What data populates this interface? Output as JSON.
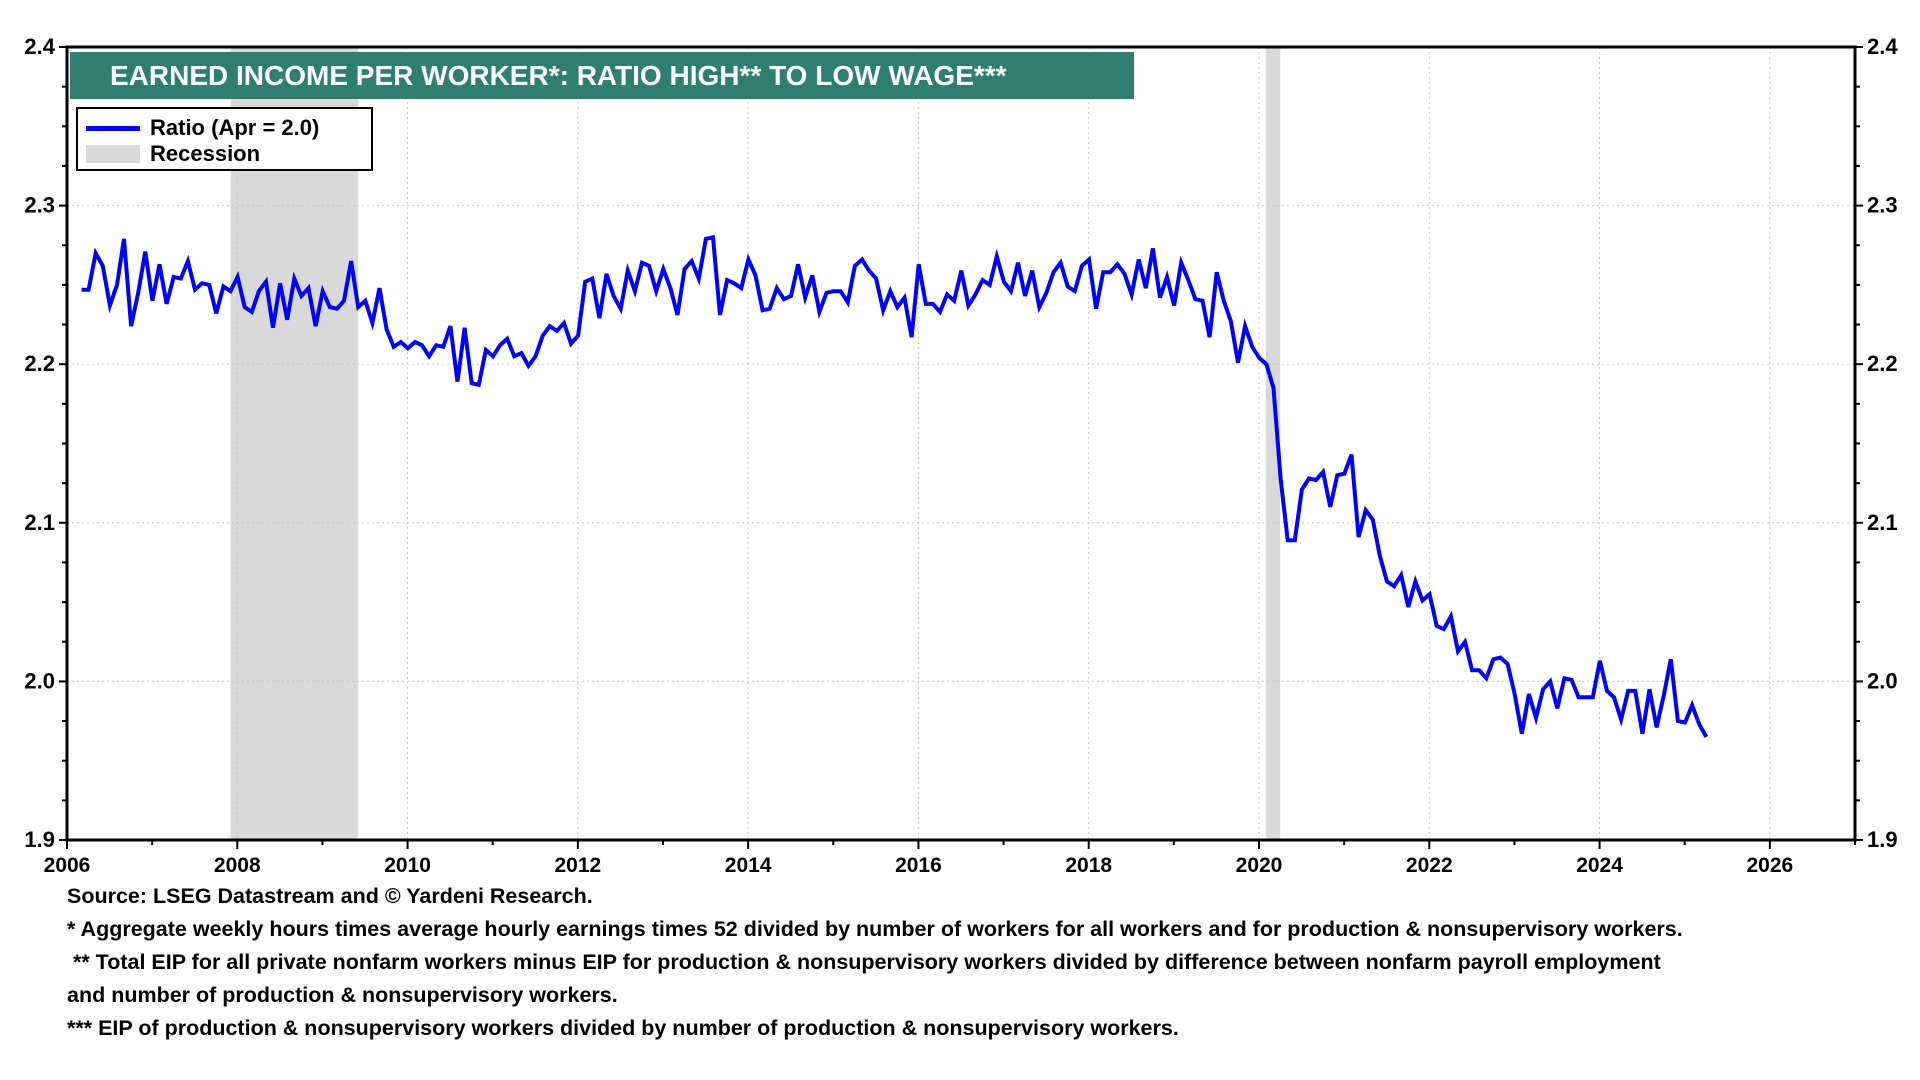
{
  "chart_data": {
    "type": "line",
    "title": "EARNED INCOME PER WORKER*: RATIO HIGH** TO LOW WAGE***",
    "xlabel": "",
    "ylabel": "",
    "xlim": [
      2006,
      2027
    ],
    "ylim": [
      1.9,
      2.4
    ],
    "x_ticks": [
      "2006",
      "2008",
      "2010",
      "2012",
      "2014",
      "2016",
      "2018",
      "2020",
      "2022",
      "2024",
      "2026"
    ],
    "y_ticks": [
      "1.9",
      "2.0",
      "2.1",
      "2.2",
      "2.3",
      "2.4"
    ],
    "grid": true,
    "legend_position": "top-left",
    "legend": [
      {
        "label": "Ratio (Apr = 2.0)",
        "color": "#0000ff"
      },
      {
        "label": "Recession",
        "color": "#d9d9d9"
      }
    ],
    "recessions": [
      [
        2007.92,
        2009.42
      ],
      [
        2020.08,
        2020.25
      ]
    ],
    "series": [
      {
        "name": "Ratio (Apr = 2.0)",
        "color": "#0000ff",
        "start": 2006.17,
        "frequency": "monthly",
        "values": [
          2.247,
          2.247,
          2.27,
          2.262,
          2.237,
          2.25,
          2.279,
          2.224,
          2.245,
          2.271,
          2.24,
          2.263,
          2.238,
          2.255,
          2.254,
          2.265,
          2.247,
          2.251,
          2.25,
          2.232,
          2.249,
          2.246,
          2.255,
          2.236,
          2.233,
          2.246,
          2.252,
          2.223,
          2.251,
          2.228,
          2.254,
          2.243,
          2.248,
          2.224,
          2.246,
          2.236,
          2.235,
          2.24,
          2.265,
          2.236,
          2.24,
          2.226,
          2.248,
          2.222,
          2.211,
          2.214,
          2.21,
          2.214,
          2.212,
          2.205,
          2.212,
          2.211,
          2.224,
          2.189,
          2.223,
          2.188,
          2.187,
          2.209,
          2.205,
          2.212,
          2.216,
          2.205,
          2.207,
          2.199,
          2.205,
          2.218,
          2.224,
          2.221,
          2.226,
          2.213,
          2.218,
          2.252,
          2.254,
          2.229,
          2.257,
          2.243,
          2.235,
          2.259,
          2.246,
          2.264,
          2.262,
          2.246,
          2.26,
          2.248,
          2.231,
          2.26,
          2.265,
          2.254,
          2.279,
          2.28,
          2.231,
          2.253,
          2.251,
          2.248,
          2.266,
          2.256,
          2.234,
          2.235,
          2.248,
          2.241,
          2.243,
          2.263,
          2.242,
          2.256,
          2.233,
          2.245,
          2.246,
          2.246,
          2.239,
          2.262,
          2.266,
          2.259,
          2.254,
          2.234,
          2.246,
          2.236,
          2.242,
          2.217,
          2.263,
          2.238,
          2.238,
          2.233,
          2.244,
          2.24,
          2.259,
          2.237,
          2.244,
          2.253,
          2.25,
          2.268,
          2.252,
          2.246,
          2.264,
          2.243,
          2.259,
          2.236,
          2.245,
          2.258,
          2.264,
          2.249,
          2.246,
          2.262,
          2.266,
          2.235,
          2.258,
          2.258,
          2.263,
          2.257,
          2.244,
          2.266,
          2.248,
          2.273,
          2.242,
          2.255,
          2.237,
          2.264,
          2.253,
          2.241,
          2.24,
          2.217,
          2.258,
          2.24,
          2.227,
          2.201,
          2.224,
          2.211,
          2.204,
          2.2,
          2.185,
          2.128,
          2.089,
          2.089,
          2.121,
          2.128,
          2.127,
          2.132,
          2.11,
          2.13,
          2.131,
          2.143,
          2.091,
          2.108,
          2.102,
          2.079,
          2.063,
          2.06,
          2.067,
          2.047,
          2.063,
          2.051,
          2.055,
          2.035,
          2.033,
          2.041,
          2.019,
          2.025,
          2.007,
          2.007,
          2.002,
          2.014,
          2.015,
          2.011,
          1.992,
          1.967,
          1.992,
          1.977,
          1.995,
          2.0,
          1.983,
          2.002,
          2.001,
          1.99,
          1.99,
          1.99,
          2.013,
          1.994,
          1.99,
          1.976,
          1.994,
          1.994,
          1.967,
          1.995,
          1.971,
          1.991,
          2.014,
          1.975,
          1.974,
          1.985,
          1.973,
          1.965
        ]
      }
    ]
  },
  "notes": {
    "source": "Source: LSEG Datastream and © Yardeni Research.",
    "note1": "* Aggregate weekly hours times average hourly earnings times 52 divided by number of workers for all workers and for production & nonsupervisory workers.",
    "note2a": " ** Total EIP for all private nonfarm workers minus EIP for production & nonsupervisory workers divided by difference between nonfarm payroll employment",
    "note2b": "and number of production & nonsupervisory workers.",
    "note3": "*** EIP of production & nonsupervisory workers divided by number of production & nonsupervisory workers."
  }
}
